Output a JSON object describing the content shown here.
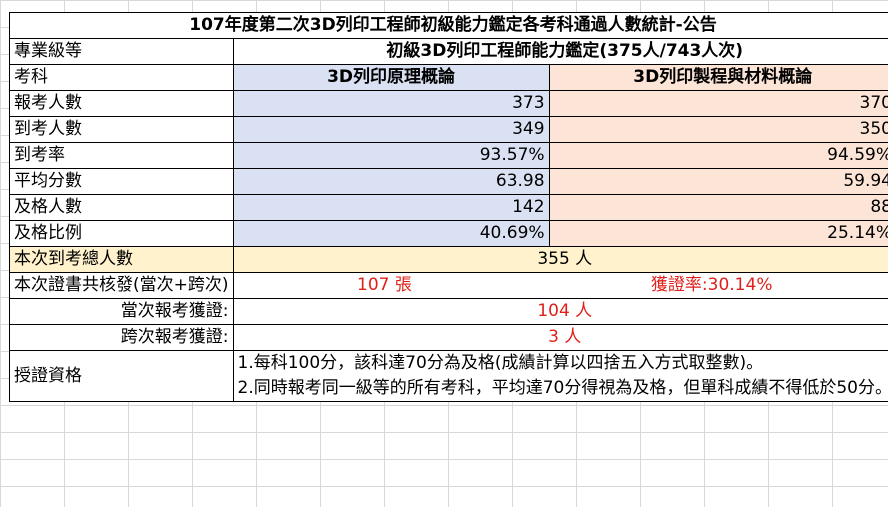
{
  "title": "107年度第二次3D列印工程師初級能力鑑定各考科通過人數統計-公告",
  "level_label": "專業級等",
  "level_value": "初級3D列印工程師能力鑑定(375人/743人次)",
  "subject_label": "考科",
  "subjects": [
    "3D列印原理概論",
    "3D列印製程與材料概論"
  ],
  "rows": [
    {
      "label": "報考人數",
      "values": [
        "373",
        "370"
      ]
    },
    {
      "label": "到考人數",
      "values": [
        "349",
        "350"
      ]
    },
    {
      "label": "到考率",
      "values": [
        "93.57%",
        "94.59%"
      ]
    },
    {
      "label": "平均分數",
      "values": [
        "63.98",
        "59.94"
      ]
    },
    {
      "label": "及格人數",
      "values": [
        "142",
        "88"
      ]
    },
    {
      "label": "及格比例",
      "values": [
        "40.69%",
        "25.14%"
      ]
    }
  ],
  "total_attendees": {
    "label": "本次到考總人數",
    "value": "355 人"
  },
  "certificates": {
    "label": "本次證書共核發(當次+跨次)",
    "count": "107 張",
    "rate": "獲證率:30.14%"
  },
  "current_cert": {
    "label": "當次報考獲證:",
    "value": "104 人"
  },
  "cross_cert": {
    "label": "跨次報考獲證:",
    "value": "3 人"
  },
  "qualification": {
    "label": "授證資格",
    "line1": "1.每科100分，該科達70分為及格(成績計算以四捨五入方式取整數)。",
    "line2": "2.同時報考同一級等的所有考科，平均達70分得視為及格，但單科成績不得低於50分。"
  },
  "colors": {
    "blue_fill": "#d9e1f2",
    "peach_fill": "#fce4d6",
    "yellow_fill": "#fff2cc",
    "red_text": "#e0201a"
  }
}
